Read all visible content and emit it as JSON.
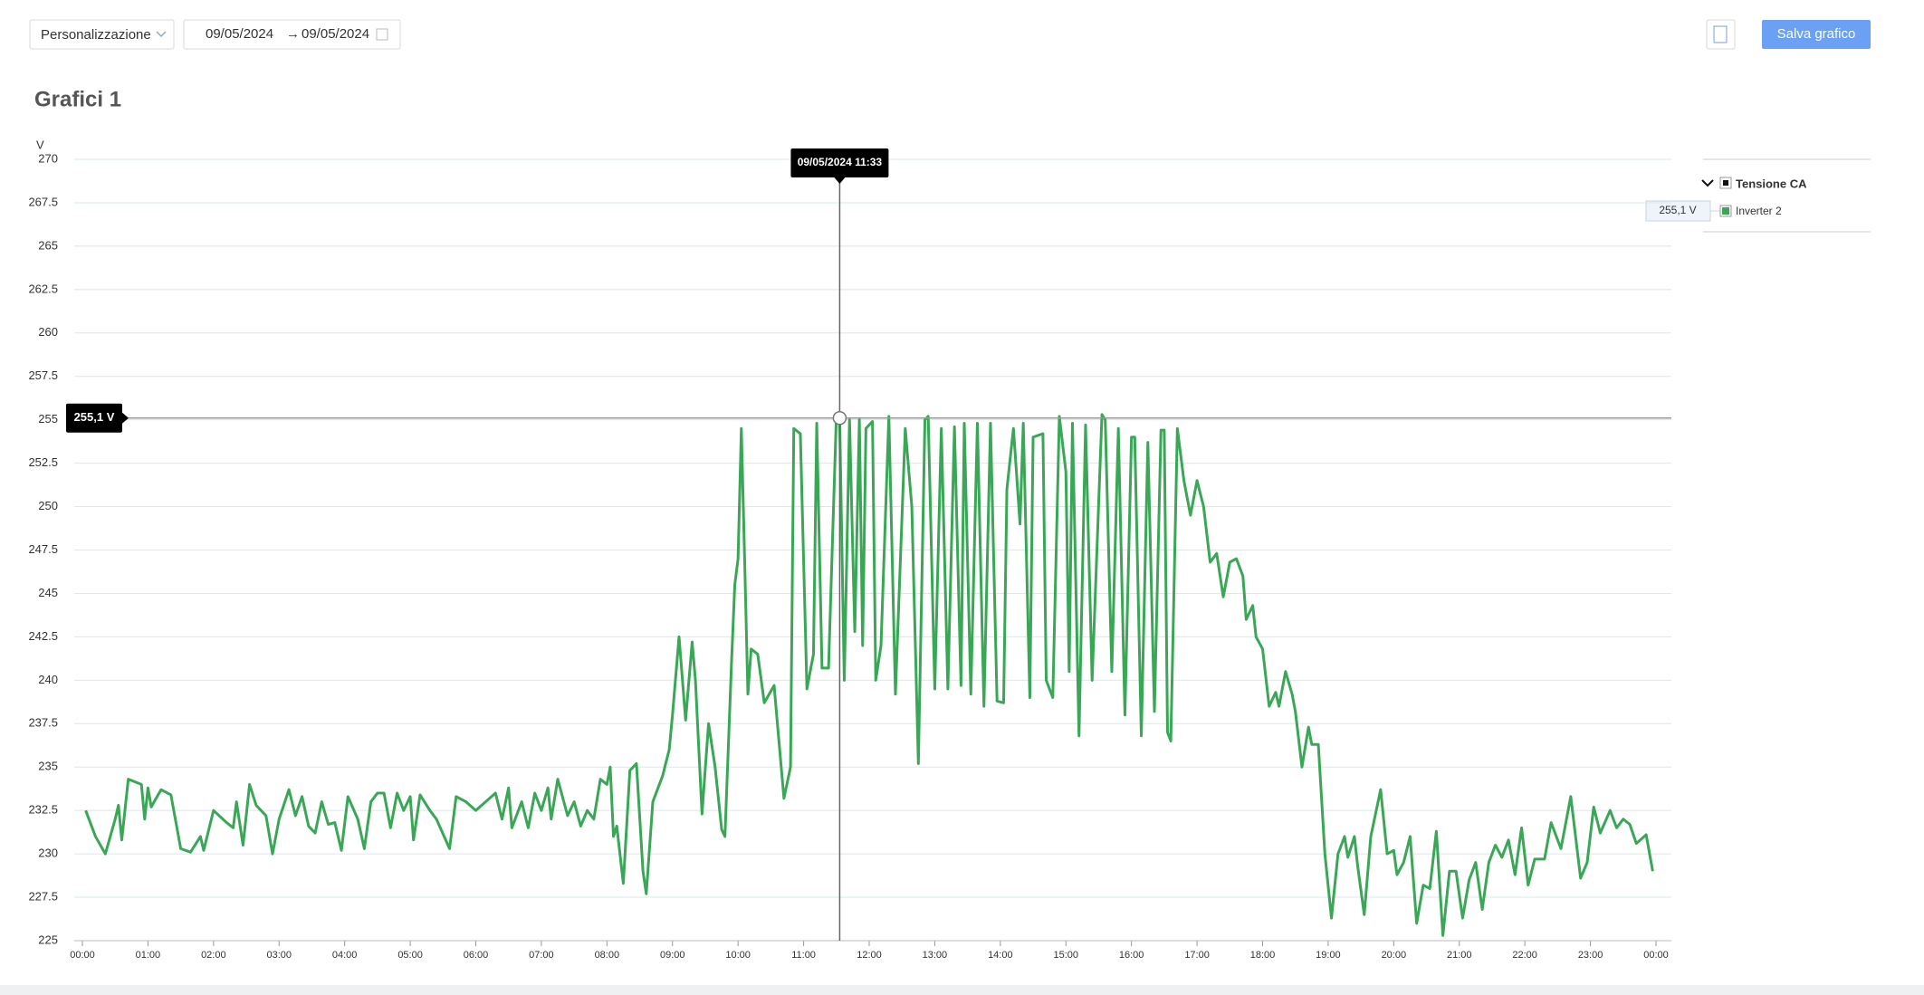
{
  "toolbar": {
    "preset": "Personalizzazione",
    "date_from": "09/05/2024",
    "date_separator": "→",
    "date_to": "09/05/2024",
    "save_button": "Salva grafico"
  },
  "chart_data": {
    "type": "line",
    "title": "Grafici 1",
    "y_label": "V",
    "legend_group": "Tensione CA",
    "x": [
      0.05,
      0.2,
      0.35,
      0.5,
      0.55,
      0.6,
      0.7,
      0.9,
      0.95,
      1.0,
      1.05,
      1.2,
      1.35,
      1.5,
      1.65,
      1.8,
      1.85,
      2.0,
      2.2,
      2.3,
      2.35,
      2.45,
      2.55,
      2.65,
      2.8,
      2.9,
      3.0,
      3.15,
      3.25,
      3.35,
      3.45,
      3.55,
      3.65,
      3.75,
      3.85,
      3.95,
      4.05,
      4.2,
      4.3,
      4.4,
      4.5,
      4.6,
      4.7,
      4.8,
      4.9,
      5.0,
      5.05,
      5.15,
      5.3,
      5.4,
      5.6,
      5.7,
      5.85,
      6.0,
      6.15,
      6.3,
      6.4,
      6.5,
      6.55,
      6.7,
      6.8,
      6.9,
      7.0,
      7.1,
      7.15,
      7.25,
      7.4,
      7.5,
      7.6,
      7.7,
      7.8,
      7.9,
      8.0,
      8.05,
      8.1,
      8.15,
      8.25,
      8.35,
      8.45,
      8.55,
      8.6,
      8.7,
      8.85,
      8.95,
      9.0,
      9.1,
      9.2,
      9.3,
      9.35,
      9.45,
      9.55,
      9.65,
      9.75,
      9.8,
      9.9,
      9.95,
      10.0,
      10.05,
      10.1,
      10.15,
      10.2,
      10.3,
      10.4,
      10.55,
      10.6,
      10.7,
      10.8,
      10.85,
      10.95,
      11.05,
      11.15,
      11.2,
      11.28,
      11.38,
      11.5,
      11.55,
      11.62,
      11.7,
      11.78,
      11.85,
      11.9,
      11.95,
      12.05,
      12.1,
      12.18,
      12.3,
      12.4,
      12.55,
      12.65,
      12.75,
      12.85,
      12.9,
      13.0,
      13.1,
      13.2,
      13.3,
      13.4,
      13.45,
      13.55,
      13.65,
      13.75,
      13.85,
      13.95,
      14.05,
      14.1,
      14.2,
      14.3,
      14.35,
      14.45,
      14.5,
      14.65,
      14.7,
      14.8,
      14.9,
      15.0,
      15.05,
      15.1,
      15.2,
      15.3,
      15.4,
      15.55,
      15.6,
      15.7,
      15.8,
      15.9,
      16.0,
      16.05,
      16.15,
      16.25,
      16.35,
      16.45,
      16.5,
      16.55,
      16.6,
      16.7,
      16.8,
      16.9,
      17.0,
      17.1,
      17.2,
      17.3,
      17.4,
      17.5,
      17.6,
      17.7,
      17.75,
      17.85,
      17.9,
      18.0,
      18.1,
      18.2,
      18.25,
      18.35,
      18.45,
      18.5,
      18.6,
      18.7,
      18.75,
      18.85,
      18.95,
      19.05,
      19.15,
      19.25,
      19.3,
      19.4,
      19.45,
      19.55,
      19.65,
      19.8,
      19.9,
      20.0,
      20.05,
      20.15,
      20.25,
      20.35,
      20.45,
      20.55,
      20.65,
      20.75,
      20.85,
      20.95,
      21.05,
      21.15,
      21.25,
      21.35,
      21.45,
      21.55,
      21.65,
      21.75,
      21.85,
      21.95,
      22.05,
      22.15,
      22.3,
      22.4,
      22.55,
      22.7,
      22.85,
      22.95,
      23.05,
      23.15,
      23.3,
      23.4,
      23.5,
      23.6,
      23.7,
      23.85,
      23.95
    ],
    "series": [
      {
        "name": "Inverter 2",
        "color": "#3aa757",
        "values": [
          232.5,
          231,
          230,
          232,
          232.8,
          230.8,
          234.3,
          234,
          232,
          233.8,
          232.7,
          233.7,
          233.4,
          230.3,
          230.1,
          231,
          230.2,
          232.5,
          231.8,
          231.5,
          233,
          230.5,
          234,
          232.8,
          232.2,
          230,
          232,
          233.7,
          232.2,
          233.3,
          231.6,
          231.2,
          233,
          231.7,
          231.8,
          230.2,
          233.3,
          232,
          230.3,
          233,
          233.5,
          233.5,
          231.5,
          233.5,
          232.5,
          233.3,
          230.8,
          233.4,
          232.5,
          232,
          230.3,
          233.3,
          233,
          232.5,
          233,
          233.5,
          232,
          233.8,
          231.5,
          233,
          231.5,
          233.5,
          232.5,
          233.8,
          232,
          234.3,
          232.2,
          233,
          231.6,
          232.5,
          232,
          234.3,
          234,
          235,
          231,
          231.6,
          228.3,
          234.8,
          235.2,
          229,
          227.7,
          233,
          234.5,
          236,
          238,
          242.5,
          237.7,
          242.2,
          240,
          232.3,
          237.5,
          235,
          231.4,
          231,
          241,
          245.5,
          247,
          254.5,
          247,
          239.2,
          241.8,
          241.5,
          238.7,
          239.7,
          237.5,
          233.2,
          235,
          254.5,
          254.2,
          239.5,
          241.5,
          254.8,
          240.7,
          240.7,
          255.3,
          255,
          240,
          255,
          242.8,
          255,
          242,
          254.5,
          254.9,
          240,
          242,
          255.2,
          239.2,
          254.5,
          250,
          235.2,
          255,
          255.2,
          239.5,
          254.5,
          239.5,
          254.6,
          239.7,
          254.8,
          239.2,
          254.8,
          238.5,
          254.8,
          238.8,
          238.7,
          251,
          254.5,
          249,
          254.8,
          239,
          254,
          254.2,
          240,
          239,
          255.2,
          252,
          240.5,
          254.8,
          236.8,
          254.7,
          240,
          255.3,
          255,
          240.5,
          254.5,
          238,
          254,
          254,
          236.8,
          253.7,
          238.2,
          254.4,
          254.4,
          237,
          236.5,
          254.5,
          251.5,
          249.5,
          251.5,
          250,
          246.8,
          247.3,
          244.8,
          246.8,
          247,
          246,
          243.5,
          244.3,
          242.5,
          241.8,
          238.5,
          239.3,
          238.5,
          240.5,
          239.2,
          238.2,
          235,
          237.3,
          236.3,
          236.3,
          230,
          226.3,
          230,
          231,
          229.8,
          231,
          229.3,
          226.5,
          231,
          233.7,
          230,
          230.2,
          228.8,
          229.5,
          231,
          226,
          228.2,
          228,
          231.3,
          225.3,
          229,
          229,
          226.3,
          228.5,
          229.5,
          226.8,
          229.5,
          230.5,
          229.8,
          230.8,
          228.8,
          231.5,
          228.2,
          229.7,
          229.7,
          231.8,
          230.3,
          233.3,
          228.6,
          229.5,
          232.7,
          231.2,
          232.5,
          231.5,
          232,
          231.7,
          230.6,
          231.1,
          229
        ]
      }
    ],
    "xlim": [
      0,
      24
    ],
    "xticks": [
      {
        "value": 0,
        "label": "00:00"
      },
      {
        "value": 1,
        "label": "01:00"
      },
      {
        "value": 2,
        "label": "02:00"
      },
      {
        "value": 3,
        "label": "03:00"
      },
      {
        "value": 4,
        "label": "04:00"
      },
      {
        "value": 5,
        "label": "05:00"
      },
      {
        "value": 6,
        "label": "06:00"
      },
      {
        "value": 7,
        "label": "07:00"
      },
      {
        "value": 8,
        "label": "08:00"
      },
      {
        "value": 9,
        "label": "09:00"
      },
      {
        "value": 10,
        "label": "10:00"
      },
      {
        "value": 11,
        "label": "11:00"
      },
      {
        "value": 12,
        "label": "12:00"
      },
      {
        "value": 13,
        "label": "13:00"
      },
      {
        "value": 14,
        "label": "14:00"
      },
      {
        "value": 15,
        "label": "15:00"
      },
      {
        "value": 16,
        "label": "16:00"
      },
      {
        "value": 17,
        "label": "17:00"
      },
      {
        "value": 18,
        "label": "18:00"
      },
      {
        "value": 19,
        "label": "19:00"
      },
      {
        "value": 20,
        "label": "20:00"
      },
      {
        "value": 21,
        "label": "21:00"
      },
      {
        "value": 22,
        "label": "22:00"
      },
      {
        "value": 23,
        "label": "23:00"
      },
      {
        "value": 24,
        "label": "00:00"
      }
    ],
    "ylim": [
      225,
      270
    ],
    "yticks": [
      225,
      227.5,
      230,
      232.5,
      235,
      237.5,
      240,
      242.5,
      245,
      247.5,
      250,
      252.5,
      255,
      257.5,
      260,
      262.5,
      265,
      267.5,
      270
    ],
    "grid": true,
    "cursor": {
      "x": 11.55,
      "y": 255.1,
      "x_label": "09/05/2024 11:33",
      "y_label": "255,1 V"
    }
  }
}
